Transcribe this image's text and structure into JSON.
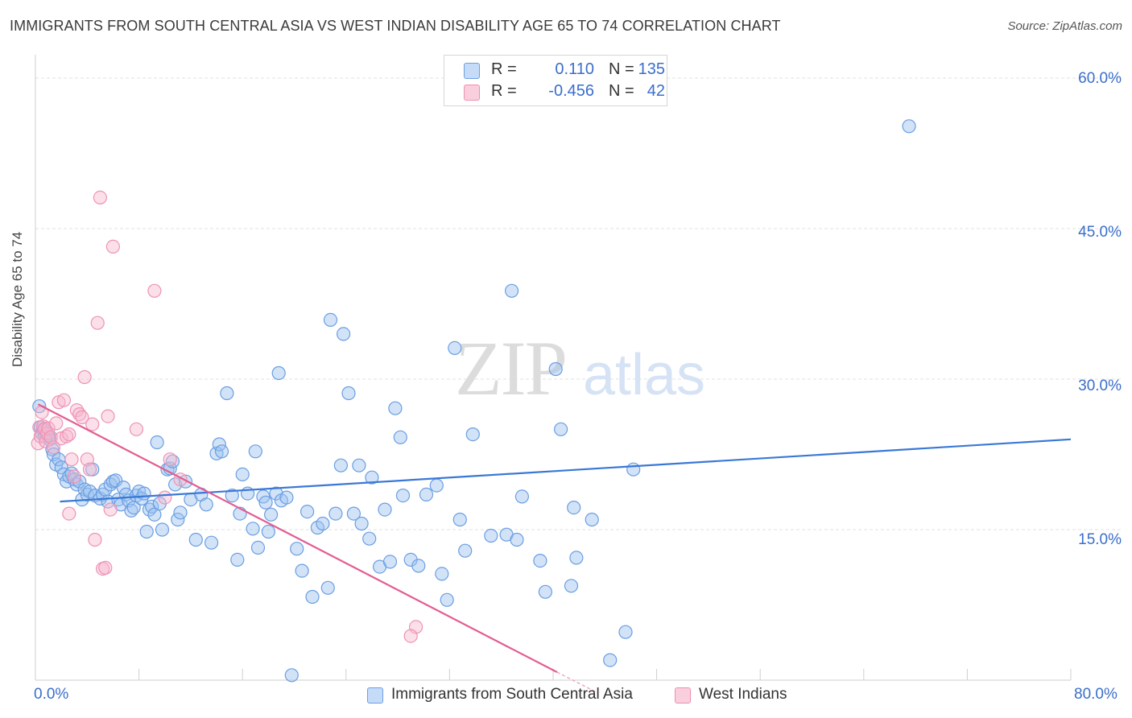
{
  "title": "IMMIGRANTS FROM SOUTH CENTRAL ASIA VS WEST INDIAN DISABILITY AGE 65 TO 74 CORRELATION CHART",
  "source": "Source: ZipAtlas.com",
  "watermark": {
    "zip": "ZIP",
    "atlas": "atlas"
  },
  "legend": {
    "rows": [
      {
        "r_label": "R =",
        "r_value": "0.110",
        "n_label": "N =",
        "n_value": "135",
        "color": "#8ab4ef"
      },
      {
        "r_label": "R =",
        "r_value": "-0.456",
        "n_label": "N =",
        "n_value": "42",
        "color": "#f4a6c0"
      }
    ]
  },
  "colors": {
    "blue": "#3a78d6",
    "blue_fill": "#a9c8f3",
    "pink": "#e35d91",
    "pink_fill": "#f6b7cc",
    "axis_text": "#3a6ecb",
    "grid": "#e3e3e3"
  },
  "chart_data": {
    "type": "scatter",
    "title": "IMMIGRANTS FROM SOUTH CENTRAL ASIA VS WEST INDIAN DISABILITY AGE 65 TO 74 CORRELATION CHART",
    "xlabel": "",
    "ylabel": "Disability Age 65 to 74",
    "xlim": [
      0,
      80
    ],
    "ylim": [
      0,
      60
    ],
    "x_tick_labels": [
      "0.0%",
      "80.0%"
    ],
    "y_ticks": [
      15,
      30,
      45,
      60
    ],
    "y_tick_labels": [
      "15.0%",
      "30.0%",
      "45.0%",
      "60.0%"
    ],
    "grid": true,
    "legend_position": "top-center",
    "series": [
      {
        "name": "Immigrants from South Central Asia",
        "color": "#3a78d6",
        "r": 0.11,
        "n": 135,
        "trend": {
          "x": [
            1.9,
            80
          ],
          "y": [
            17.8,
            24.0
          ]
        },
        "points": [
          [
            0.3,
            27.3
          ],
          [
            0.4,
            25.2
          ],
          [
            0.5,
            24.6
          ],
          [
            0.6,
            25.0
          ],
          [
            0.7,
            24.3
          ],
          [
            0.8,
            24.9
          ],
          [
            1.0,
            24.4
          ],
          [
            1.1,
            24.0
          ],
          [
            1.3,
            23.0
          ],
          [
            1.4,
            22.5
          ],
          [
            1.6,
            21.5
          ],
          [
            1.8,
            22.0
          ],
          [
            2.0,
            21.2
          ],
          [
            2.2,
            20.5
          ],
          [
            2.4,
            19.8
          ],
          [
            2.6,
            20.3
          ],
          [
            2.8,
            20.6
          ],
          [
            3.0,
            20.0
          ],
          [
            3.2,
            19.5
          ],
          [
            3.4,
            19.8
          ],
          [
            3.6,
            18.0
          ],
          [
            3.8,
            19.0
          ],
          [
            4.0,
            18.5
          ],
          [
            4.2,
            18.8
          ],
          [
            4.4,
            21.0
          ],
          [
            4.6,
            18.4
          ],
          [
            5.0,
            18.1
          ],
          [
            5.2,
            18.5
          ],
          [
            5.4,
            19.0
          ],
          [
            5.6,
            17.8
          ],
          [
            5.8,
            19.5
          ],
          [
            6.0,
            19.8
          ],
          [
            6.2,
            19.9
          ],
          [
            6.4,
            18.0
          ],
          [
            6.6,
            17.5
          ],
          [
            6.8,
            19.2
          ],
          [
            7.0,
            18.5
          ],
          [
            7.2,
            17.9
          ],
          [
            7.4,
            16.9
          ],
          [
            7.6,
            17.2
          ],
          [
            7.8,
            18.4
          ],
          [
            8.0,
            18.8
          ],
          [
            8.2,
            18.1
          ],
          [
            8.4,
            18.6
          ],
          [
            8.6,
            14.8
          ],
          [
            8.8,
            17.0
          ],
          [
            9.0,
            17.3
          ],
          [
            9.2,
            16.5
          ],
          [
            9.4,
            23.7
          ],
          [
            9.6,
            17.6
          ],
          [
            9.8,
            15.0
          ],
          [
            10.2,
            21.0
          ],
          [
            10.4,
            21.1
          ],
          [
            10.6,
            21.8
          ],
          [
            10.8,
            19.5
          ],
          [
            11.0,
            16.0
          ],
          [
            11.2,
            16.7
          ],
          [
            11.6,
            19.8
          ],
          [
            12.0,
            18.0
          ],
          [
            12.4,
            14.0
          ],
          [
            12.8,
            18.5
          ],
          [
            13.2,
            17.5
          ],
          [
            13.6,
            13.7
          ],
          [
            14.0,
            22.6
          ],
          [
            14.2,
            23.5
          ],
          [
            14.4,
            22.8
          ],
          [
            14.8,
            28.6
          ],
          [
            15.2,
            18.4
          ],
          [
            15.6,
            12.0
          ],
          [
            15.8,
            16.6
          ],
          [
            16.0,
            20.5
          ],
          [
            16.4,
            18.6
          ],
          [
            16.8,
            15.1
          ],
          [
            17.0,
            22.8
          ],
          [
            17.2,
            13.2
          ],
          [
            17.6,
            18.3
          ],
          [
            17.8,
            17.7
          ],
          [
            18.0,
            14.8
          ],
          [
            18.2,
            16.5
          ],
          [
            18.6,
            18.6
          ],
          [
            18.8,
            30.6
          ],
          [
            19.0,
            17.9
          ],
          [
            19.4,
            18.2
          ],
          [
            19.8,
            0.5
          ],
          [
            20.2,
            13.1
          ],
          [
            20.6,
            10.9
          ],
          [
            21.0,
            16.8
          ],
          [
            21.4,
            8.3
          ],
          [
            21.8,
            15.2
          ],
          [
            22.2,
            15.6
          ],
          [
            22.6,
            9.2
          ],
          [
            22.8,
            35.9
          ],
          [
            23.2,
            16.6
          ],
          [
            23.6,
            21.4
          ],
          [
            23.8,
            34.5
          ],
          [
            24.2,
            28.6
          ],
          [
            24.6,
            16.6
          ],
          [
            25.0,
            21.4
          ],
          [
            25.2,
            15.6
          ],
          [
            25.8,
            14.1
          ],
          [
            26.0,
            20.2
          ],
          [
            26.6,
            11.3
          ],
          [
            27.0,
            17.0
          ],
          [
            27.4,
            11.8
          ],
          [
            27.8,
            27.1
          ],
          [
            28.2,
            24.2
          ],
          [
            28.4,
            18.4
          ],
          [
            29.0,
            12.0
          ],
          [
            29.6,
            11.4
          ],
          [
            30.2,
            18.5
          ],
          [
            31.0,
            19.4
          ],
          [
            31.4,
            10.6
          ],
          [
            31.8,
            8.0
          ],
          [
            32.4,
            33.1
          ],
          [
            32.8,
            16.0
          ],
          [
            33.2,
            12.9
          ],
          [
            33.8,
            24.5
          ],
          [
            35.2,
            14.4
          ],
          [
            36.4,
            14.5
          ],
          [
            36.8,
            38.8
          ],
          [
            37.2,
            14.0
          ],
          [
            37.6,
            18.3
          ],
          [
            39.0,
            11.9
          ],
          [
            39.4,
            8.8
          ],
          [
            40.2,
            31.0
          ],
          [
            40.6,
            25.0
          ],
          [
            41.4,
            9.4
          ],
          [
            41.6,
            17.2
          ],
          [
            41.8,
            12.2
          ],
          [
            43.0,
            16.0
          ],
          [
            44.4,
            2.0
          ],
          [
            45.6,
            4.8
          ],
          [
            46.2,
            21.0
          ],
          [
            67.5,
            55.2
          ]
        ]
      },
      {
        "name": "West Indians",
        "color": "#e35d91",
        "r": -0.456,
        "n": 42,
        "trend": {
          "x": [
            0.2,
            40.3
          ],
          "y": [
            27.5,
            0.8
          ]
        },
        "trend_dashed": {
          "x": [
            40.3,
            43.5
          ],
          "y": [
            0.8,
            -1.3
          ]
        },
        "points": [
          [
            0.2,
            23.6
          ],
          [
            0.3,
            25.2
          ],
          [
            0.4,
            24.3
          ],
          [
            0.5,
            26.7
          ],
          [
            0.6,
            25.3
          ],
          [
            0.7,
            25.0
          ],
          [
            0.8,
            23.8
          ],
          [
            0.9,
            24.6
          ],
          [
            1.0,
            25.1
          ],
          [
            1.2,
            24.2
          ],
          [
            1.4,
            23.2
          ],
          [
            1.6,
            25.6
          ],
          [
            1.8,
            27.7
          ],
          [
            2.0,
            24.1
          ],
          [
            2.2,
            27.9
          ],
          [
            2.4,
            24.3
          ],
          [
            2.6,
            24.5
          ],
          [
            2.8,
            22.0
          ],
          [
            3.0,
            20.3
          ],
          [
            2.6,
            16.6
          ],
          [
            3.2,
            26.9
          ],
          [
            3.4,
            26.5
          ],
          [
            3.6,
            26.2
          ],
          [
            3.8,
            30.2
          ],
          [
            4.0,
            22.0
          ],
          [
            4.2,
            21.0
          ],
          [
            4.4,
            25.5
          ],
          [
            4.6,
            14.0
          ],
          [
            4.8,
            35.6
          ],
          [
            5.0,
            48.1
          ],
          [
            5.2,
            11.1
          ],
          [
            5.4,
            11.2
          ],
          [
            5.6,
            26.3
          ],
          [
            5.8,
            17.0
          ],
          [
            6.0,
            43.2
          ],
          [
            7.8,
            25.0
          ],
          [
            9.2,
            38.8
          ],
          [
            10.0,
            18.2
          ],
          [
            10.4,
            22.0
          ],
          [
            11.2,
            20.0
          ],
          [
            29.4,
            5.3
          ],
          [
            29.0,
            4.4
          ]
        ]
      }
    ]
  },
  "bottom_legend": {
    "items": [
      {
        "label": "Immigrants from South Central Asia",
        "color": "#a9c8f3",
        "border": "#3a78d6"
      },
      {
        "label": "West Indians",
        "color": "#f6c2d5",
        "border": "#e35d91"
      }
    ]
  }
}
